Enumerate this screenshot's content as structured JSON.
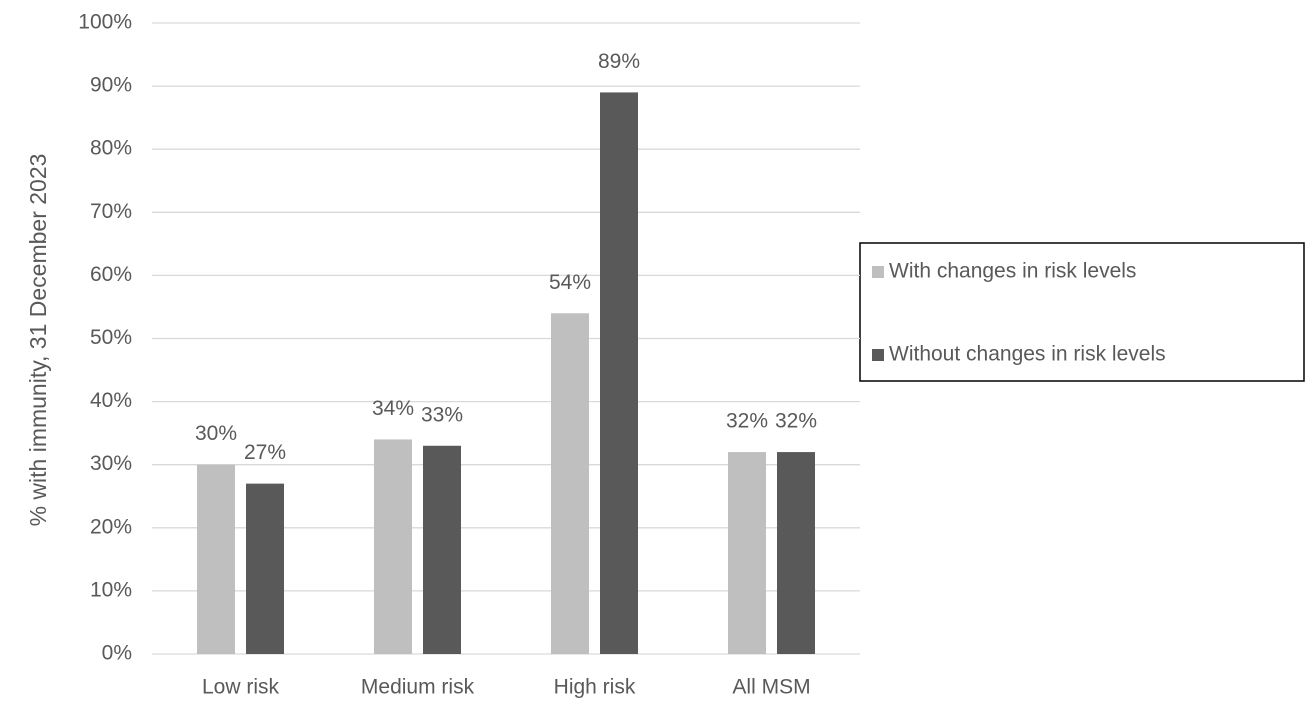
{
  "chart_data": {
    "type": "bar",
    "y_label": "% with immunity, 31 December 2023",
    "categories": [
      "Low risk",
      "Medium risk",
      "High risk",
      "All MSM"
    ],
    "series": [
      {
        "name": "With changes in risk levels",
        "color": "#bfbfbf",
        "values": [
          30,
          34,
          54,
          32
        ],
        "value_labels": [
          "30%",
          "34%",
          "54%",
          "32%"
        ]
      },
      {
        "name": "Without changes in risk levels",
        "color": "#595959",
        "values": [
          27,
          33,
          89,
          32
        ],
        "value_labels": [
          "27%",
          "33%",
          "89%",
          "32%"
        ]
      }
    ],
    "ylim": [
      0,
      100
    ],
    "yticks": [
      {
        "value": 0,
        "label": "0%"
      },
      {
        "value": 10,
        "label": "10%"
      },
      {
        "value": 20,
        "label": "20%"
      },
      {
        "value": 30,
        "label": "30%"
      },
      {
        "value": 40,
        "label": "40%"
      },
      {
        "value": 50,
        "label": "50%"
      },
      {
        "value": 60,
        "label": "60%"
      },
      {
        "value": 70,
        "label": "70%"
      },
      {
        "value": 80,
        "label": "80%"
      },
      {
        "value": 90,
        "label": "90%"
      },
      {
        "value": 100,
        "label": "100%"
      }
    ],
    "grid": true,
    "legend": "right"
  }
}
